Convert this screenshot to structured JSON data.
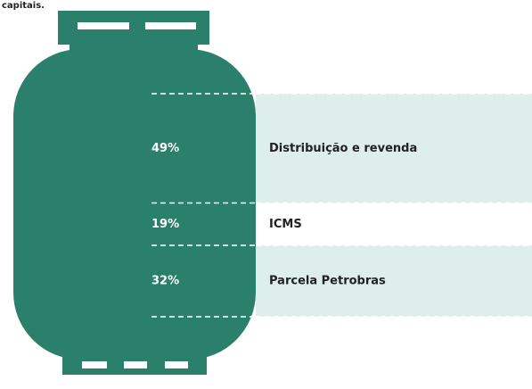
{
  "chart_data": {
    "type": "stacked-proportion",
    "subtitle": "capitais.",
    "categories": [
      "Distribuição e revenda",
      "ICMS",
      "Parcela Petrobras"
    ],
    "values": [
      49,
      19,
      32
    ],
    "value_labels": [
      "49%",
      "19%",
      "32%"
    ],
    "color": "#2b806b",
    "band_colors": [
      "#deeeea",
      "#ffffff",
      "#deeeea"
    ]
  }
}
